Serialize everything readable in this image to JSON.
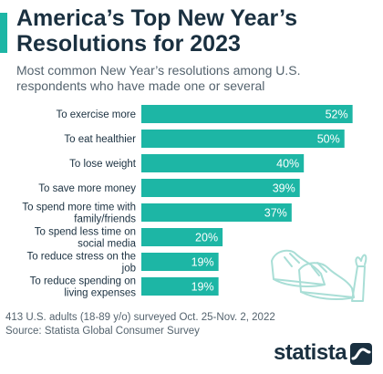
{
  "header": {
    "title": "America’s Top New Year’s Resolutions for 2023",
    "subtitle": "Most common New Year’s resolutions among U.S. respondents who have made one or several"
  },
  "chart_data": {
    "type": "bar",
    "orientation": "horizontal",
    "categories": [
      "To exercise more",
      "To eat healthier",
      "To lose weight",
      "To save more money",
      "To spend more time with family/friends",
      "To spend less time on social media",
      "To reduce stress on the job",
      "To reduce spending on living expenses"
    ],
    "values": [
      52,
      50,
      40,
      39,
      37,
      20,
      19,
      19
    ],
    "value_labels": [
      "52%",
      "50%",
      "40%",
      "39%",
      "37%",
      "20%",
      "19%",
      "19%"
    ],
    "xlim": [
      0,
      55
    ],
    "grid": false,
    "bar_color": "#1db6a5",
    "label_color": "#ffffff"
  },
  "footer": {
    "note": "413 U.S. adults (18-89 y/o) surveyed Oct. 25-Nov. 2, 2022",
    "source": "Source: Statista Global Consumer Survey"
  },
  "brand": {
    "name": "statista",
    "logo_icon": "statista-wave-icon",
    "illustration_icon": "sneakers-and-carrot-icon"
  },
  "colors": {
    "accent": "#1db6a5",
    "title": "#1a3040",
    "text": "#54636e",
    "illustration": "#a9ded6"
  }
}
